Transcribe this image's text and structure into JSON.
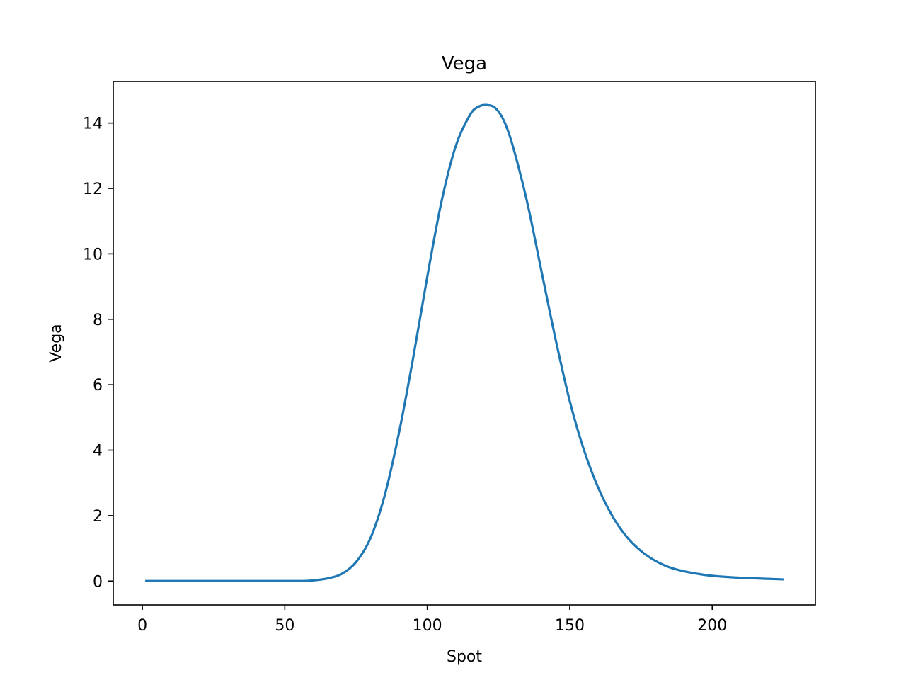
{
  "chart_data": {
    "type": "line",
    "title": "Vega",
    "xlabel": "Spot",
    "ylabel": "Vega",
    "xlim": [
      -10.2,
      236.2
    ],
    "ylim": [
      -0.73,
      15.27
    ],
    "x_ticks": [
      0,
      50,
      100,
      150,
      200
    ],
    "x_tick_labels": [
      "0",
      "50",
      "100",
      "150",
      "200"
    ],
    "y_ticks": [
      0,
      2,
      4,
      6,
      8,
      10,
      12,
      14
    ],
    "y_tick_labels": [
      "0",
      "2",
      "4",
      "6",
      "8",
      "10",
      "12",
      "14"
    ],
    "grid": false,
    "legend": "none",
    "series": [
      {
        "color": "#1f77b4",
        "x": [
          1,
          20,
          40,
          55,
          60,
          65,
          70,
          75,
          80,
          85,
          90,
          95,
          100,
          105,
          110,
          115,
          118,
          121,
          124,
          127,
          130,
          135,
          140,
          145,
          150,
          155,
          160,
          165,
          170,
          175,
          180,
          185,
          190,
          195,
          200,
          210,
          225
        ],
        "y": [
          0.0,
          0.0,
          0.0,
          0.0,
          0.02,
          0.08,
          0.22,
          0.58,
          1.3,
          2.6,
          4.5,
          6.8,
          9.3,
          11.6,
          13.3,
          14.25,
          14.5,
          14.55,
          14.45,
          14.05,
          13.3,
          11.6,
          9.5,
          7.4,
          5.5,
          4.0,
          2.85,
          1.98,
          1.35,
          0.92,
          0.62,
          0.42,
          0.3,
          0.22,
          0.16,
          0.1,
          0.05
        ]
      }
    ]
  }
}
